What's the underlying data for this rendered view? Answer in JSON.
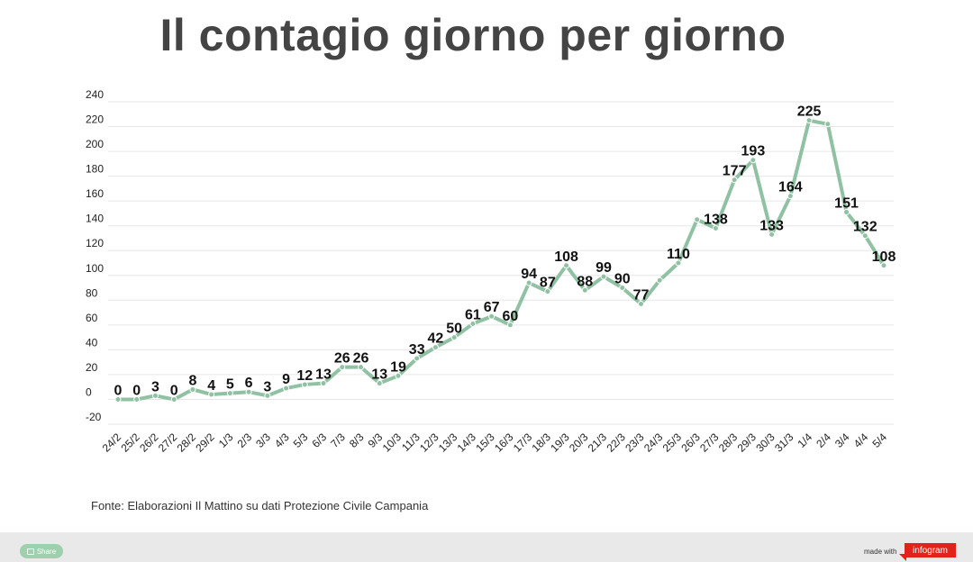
{
  "page": {
    "title": "Il contagio giorno per giorno",
    "source": "Fonte: Elaborazioni Il Mattino su dati Protezione Civile Campania"
  },
  "footer": {
    "share_label": "Share",
    "made_with": "made with",
    "brand": "infogram"
  },
  "colors": {
    "line": "#8fc1a2",
    "grid": "#e6e6e6",
    "title": "#444444",
    "brand": "#e1231b"
  },
  "chart_data": {
    "type": "line",
    "title": "Il contagio giorno per giorno",
    "xlabel": "",
    "ylabel": "",
    "ylim": [
      -20,
      240
    ],
    "yticks": [
      -20,
      0,
      20,
      40,
      60,
      80,
      100,
      120,
      140,
      160,
      180,
      200,
      220,
      240
    ],
    "grid": true,
    "categories": [
      "24/2",
      "25/2",
      "26/2",
      "27/2",
      "28/2",
      "29/2",
      "1/3",
      "2/3",
      "3/3",
      "4/3",
      "5/3",
      "6/3",
      "7/3",
      "8/3",
      "9/3",
      "10/3",
      "11/3",
      "12/3",
      "13/3",
      "14/3",
      "15/3",
      "16/3",
      "17/3",
      "18/3",
      "19/3",
      "20/3",
      "21/3",
      "22/3",
      "23/3",
      "24/3",
      "25/3",
      "26/3",
      "27/3",
      "28/3",
      "29/3",
      "30/3",
      "31/3",
      "1/4",
      "2/4",
      "3/4",
      "4/4",
      "5/4"
    ],
    "series": [
      {
        "values": [
          0,
          0,
          3,
          0,
          8,
          4,
          5,
          6,
          3,
          9,
          12,
          13,
          26,
          26,
          13,
          19,
          33,
          42,
          50,
          61,
          67,
          60,
          94,
          87,
          108,
          88,
          99,
          90,
          77,
          96,
          110,
          145,
          138,
          177,
          193,
          133,
          164,
          225,
          222,
          151,
          132,
          108
        ],
        "labels": [
          "0",
          "0",
          "3",
          "0",
          "8",
          "4",
          "5",
          "6",
          "3",
          "9",
          "12",
          "13",
          "26",
          "26",
          "13",
          "19",
          "33",
          "42",
          "50",
          "61",
          "67",
          "60",
          "94",
          "87",
          "108",
          "88",
          "99",
          "90",
          "77",
          "",
          "110",
          "",
          "138",
          "177",
          "193",
          "133",
          "164",
          "225",
          "",
          "151",
          "132",
          "108"
        ]
      }
    ]
  }
}
